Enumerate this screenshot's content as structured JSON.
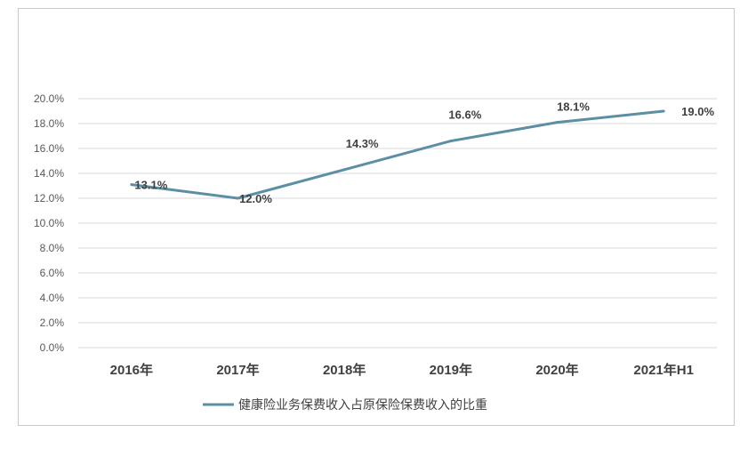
{
  "chart_data": {
    "type": "line",
    "categories": [
      "2016年",
      "2017年",
      "2018年",
      "2019年",
      "2020年",
      "2021年H1"
    ],
    "series": [
      {
        "name": "健康险业务保费收入占原保险保费收入的比重",
        "values": [
          13.1,
          12.0,
          14.3,
          16.6,
          18.1,
          19.0
        ],
        "labels": [
          "13.1%",
          "12.0%",
          "14.3%",
          "16.6%",
          "18.1%",
          "19.0%"
        ],
        "color": "#5b8fa3"
      }
    ],
    "yticks": [
      "0.0%",
      "2.0%",
      "4.0%",
      "6.0%",
      "8.0%",
      "10.0%",
      "12.0%",
      "14.0%",
      "16.0%",
      "18.0%",
      "20.0%"
    ],
    "ylim": [
      0,
      20
    ],
    "grid": true,
    "legend_position": "bottom"
  }
}
